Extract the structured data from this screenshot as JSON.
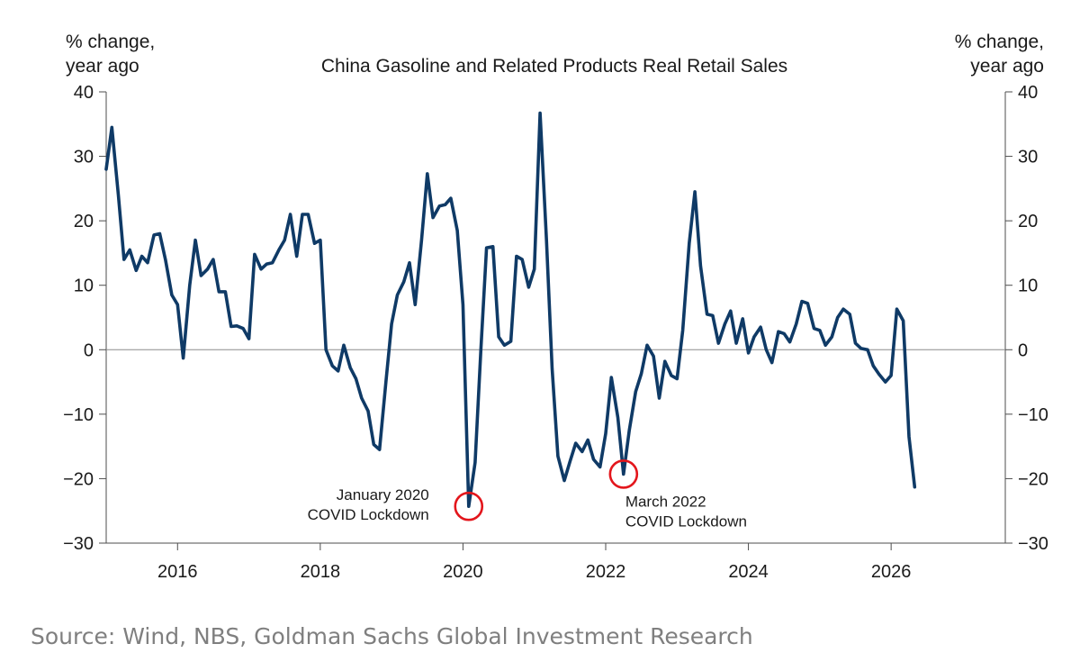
{
  "chart_data": {
    "type": "line",
    "title": "China Gasoline and Related Products Real Retail Sales",
    "ylabel_left": [
      "% change,",
      "year ago"
    ],
    "ylabel_right": [
      "% change,",
      "year ago"
    ],
    "ylim": [
      -30,
      40
    ],
    "yticks": [
      40,
      30,
      20,
      10,
      0,
      -10,
      -20,
      -30
    ],
    "ytick_labels": [
      "40",
      "30",
      "20",
      "10",
      "0",
      "−10",
      "−20",
      "−30"
    ],
    "xlim": [
      2015,
      2027.6
    ],
    "xticks": [
      2016,
      2018,
      2020,
      2022,
      2024,
      2026
    ],
    "xtick_labels": [
      "2016",
      "2018",
      "2020",
      "2022",
      "2024",
      "2026"
    ],
    "x_unit": "year",
    "grid": false,
    "zero_line": true,
    "line_color": "#0f3a66",
    "series": [
      {
        "points": [
          [
            2015.0,
            28
          ],
          [
            2015.08,
            34.5
          ],
          [
            2015.17,
            24
          ],
          [
            2015.25,
            14
          ],
          [
            2015.33,
            15.5
          ],
          [
            2015.42,
            12.3
          ],
          [
            2015.5,
            14.5
          ],
          [
            2015.58,
            13.5
          ],
          [
            2015.67,
            17.8
          ],
          [
            2015.75,
            18
          ],
          [
            2015.83,
            14
          ],
          [
            2015.92,
            8.5
          ],
          [
            2016.0,
            7
          ],
          [
            2016.08,
            -1.3
          ],
          [
            2016.17,
            10
          ],
          [
            2016.25,
            17
          ],
          [
            2016.33,
            11.5
          ],
          [
            2016.42,
            12.5
          ],
          [
            2016.5,
            14
          ],
          [
            2016.58,
            9
          ],
          [
            2016.67,
            9
          ],
          [
            2016.75,
            3.6
          ],
          [
            2016.83,
            3.7
          ],
          [
            2016.92,
            3.3
          ],
          [
            2017.0,
            1.7
          ],
          [
            2017.08,
            14.8
          ],
          [
            2017.17,
            12.5
          ],
          [
            2017.25,
            13.3
          ],
          [
            2017.33,
            13.5
          ],
          [
            2017.42,
            15.5
          ],
          [
            2017.5,
            17
          ],
          [
            2017.58,
            21
          ],
          [
            2017.67,
            14.5
          ],
          [
            2017.75,
            21
          ],
          [
            2017.83,
            21
          ],
          [
            2017.92,
            16.5
          ],
          [
            2018.0,
            17
          ],
          [
            2018.08,
            0
          ],
          [
            2018.17,
            -2.5
          ],
          [
            2018.25,
            -3.3
          ],
          [
            2018.33,
            0.7
          ],
          [
            2018.42,
            -2.8
          ],
          [
            2018.5,
            -4.5
          ],
          [
            2018.58,
            -7.5
          ],
          [
            2018.67,
            -9.5
          ],
          [
            2018.75,
            -14.7
          ],
          [
            2018.83,
            -15.5
          ],
          [
            2018.92,
            -5
          ],
          [
            2019.0,
            4
          ],
          [
            2019.08,
            8.5
          ],
          [
            2019.17,
            10.5
          ],
          [
            2019.25,
            13.5
          ],
          [
            2019.33,
            7
          ],
          [
            2019.42,
            17
          ],
          [
            2019.5,
            27.3
          ],
          [
            2019.58,
            20.5
          ],
          [
            2019.67,
            22.3
          ],
          [
            2019.75,
            22.5
          ],
          [
            2019.83,
            23.5
          ],
          [
            2019.92,
            18.5
          ],
          [
            2020.0,
            7
          ],
          [
            2020.08,
            -24.3
          ],
          [
            2020.17,
            -17.5
          ],
          [
            2020.25,
            0
          ],
          [
            2020.33,
            15.8
          ],
          [
            2020.42,
            16
          ],
          [
            2020.5,
            2
          ],
          [
            2020.58,
            0.7
          ],
          [
            2020.67,
            1.3
          ],
          [
            2020.75,
            14.5
          ],
          [
            2020.83,
            14
          ],
          [
            2020.92,
            9.7
          ],
          [
            2021.0,
            12.5
          ],
          [
            2021.08,
            36.7
          ],
          [
            2021.17,
            17
          ],
          [
            2021.25,
            -3
          ],
          [
            2021.33,
            -16.5
          ],
          [
            2021.42,
            -20.3
          ],
          [
            2021.5,
            -17.3
          ],
          [
            2021.58,
            -14.5
          ],
          [
            2021.67,
            -15.8
          ],
          [
            2021.75,
            -14
          ],
          [
            2021.83,
            -17
          ],
          [
            2021.92,
            -18.2
          ],
          [
            2022.0,
            -13
          ],
          [
            2022.08,
            -4.3
          ],
          [
            2022.17,
            -10.5
          ],
          [
            2022.25,
            -19.3
          ],
          [
            2022.33,
            -12.5
          ],
          [
            2022.42,
            -6.5
          ],
          [
            2022.5,
            -3.7
          ],
          [
            2022.58,
            0.7
          ],
          [
            2022.67,
            -1
          ],
          [
            2022.75,
            -7.5
          ],
          [
            2022.83,
            -1.8
          ],
          [
            2022.92,
            -4
          ],
          [
            2023.0,
            -4.5
          ],
          [
            2023.08,
            3
          ],
          [
            2023.17,
            16.5
          ],
          [
            2023.25,
            24.5
          ],
          [
            2023.33,
            13
          ],
          [
            2023.42,
            5.5
          ],
          [
            2023.5,
            5.3
          ],
          [
            2023.58,
            1
          ],
          [
            2023.67,
            4
          ],
          [
            2023.75,
            6
          ],
          [
            2023.83,
            1
          ],
          [
            2023.92,
            4.8
          ],
          [
            2024.0,
            -0.5
          ],
          [
            2024.08,
            2
          ],
          [
            2024.17,
            3.5
          ],
          [
            2024.25,
            0
          ],
          [
            2024.33,
            -2
          ],
          [
            2024.42,
            2.8
          ],
          [
            2024.5,
            2.5
          ],
          [
            2024.58,
            1.2
          ],
          [
            2024.67,
            4
          ],
          [
            2024.75,
            7.5
          ],
          [
            2024.83,
            7.2
          ],
          [
            2024.92,
            3.3
          ],
          [
            2025.0,
            3
          ],
          [
            2025.08,
            0.7
          ],
          [
            2025.17,
            2
          ],
          [
            2025.25,
            5
          ],
          [
            2025.33,
            6.3
          ],
          [
            2025.42,
            5.5
          ],
          [
            2025.5,
            1
          ],
          [
            2025.58,
            0.2
          ],
          [
            2025.67,
            0
          ],
          [
            2025.75,
            -2.5
          ],
          [
            2025.83,
            -3.8
          ],
          [
            2025.92,
            -5
          ],
          [
            2026.0,
            -4
          ],
          [
            2026.08,
            6.3
          ],
          [
            2026.17,
            4.5
          ],
          [
            2026.25,
            -13.5
          ],
          [
            2026.33,
            -21.3
          ]
        ]
      }
    ],
    "annotations": [
      {
        "lines": [
          "January 2020",
          "COVID Lockdown"
        ],
        "x": 2020.08,
        "y": -24.3,
        "text_side": "left"
      },
      {
        "lines": [
          "March 2022",
          "COVID Lockdown"
        ],
        "x": 2022.25,
        "y": -19.3,
        "text_side": "below-right"
      }
    ],
    "marker_color": "#e3161c"
  },
  "source": "Source: Wind, NBS, Goldman Sachs Global Investment Research"
}
